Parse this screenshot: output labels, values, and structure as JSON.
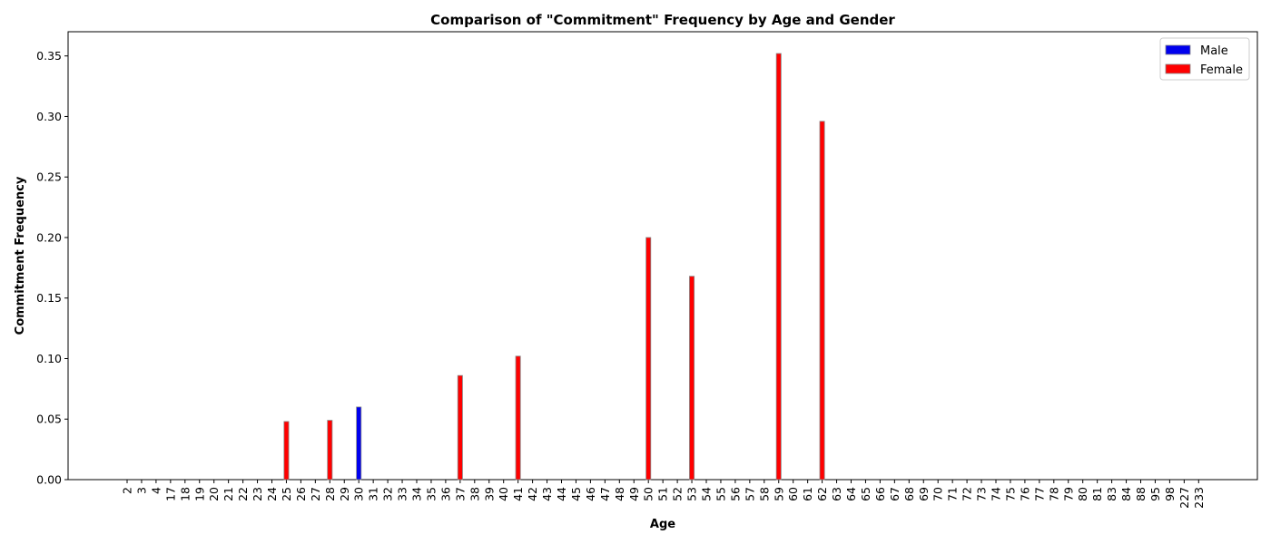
{
  "chart_data": {
    "type": "bar",
    "title": "Comparison of \"Commitment\" Frequency by Age and Gender",
    "xlabel": "Age",
    "ylabel": "Commitment Frequency",
    "ylim": [
      0,
      0.37
    ],
    "yticks": [
      0.0,
      0.05,
      0.1,
      0.15,
      0.2,
      0.25,
      0.3,
      0.35
    ],
    "ytick_labels": [
      "0.00",
      "0.05",
      "0.10",
      "0.15",
      "0.20",
      "0.25",
      "0.30",
      "0.35"
    ],
    "grid": false,
    "legend_position": "top-right",
    "categories": [
      "2",
      "3",
      "4",
      "17",
      "18",
      "19",
      "20",
      "21",
      "22",
      "23",
      "24",
      "25",
      "26",
      "27",
      "28",
      "29",
      "30",
      "31",
      "32",
      "33",
      "34",
      "35",
      "36",
      "37",
      "38",
      "39",
      "40",
      "41",
      "42",
      "43",
      "44",
      "45",
      "46",
      "47",
      "48",
      "49",
      "50",
      "51",
      "52",
      "53",
      "54",
      "55",
      "56",
      "57",
      "58",
      "59",
      "60",
      "61",
      "62",
      "63",
      "64",
      "65",
      "66",
      "67",
      "68",
      "69",
      "70",
      "71",
      "72",
      "73",
      "74",
      "75",
      "76",
      "77",
      "78",
      "79",
      "80",
      "81",
      "83",
      "84",
      "88",
      "95",
      "98",
      "227",
      "233"
    ],
    "series": [
      {
        "name": "Male",
        "color": "#0000ee",
        "values": [
          0,
          0,
          0,
          0,
          0,
          0,
          0,
          0,
          0,
          0,
          0,
          0,
          0,
          0,
          0,
          0,
          0.06,
          0,
          0,
          0,
          0,
          0,
          0,
          0,
          0,
          0,
          0,
          0,
          0,
          0,
          0,
          0,
          0,
          0,
          0,
          0,
          0,
          0,
          0,
          0,
          0,
          0,
          0,
          0,
          0,
          0,
          0,
          0,
          0,
          0,
          0,
          0,
          0,
          0,
          0,
          0,
          0,
          0,
          0,
          0,
          0,
          0,
          0,
          0,
          0,
          0,
          0,
          0,
          0,
          0,
          0,
          0,
          0,
          0,
          0
        ]
      },
      {
        "name": "Female",
        "color": "#ff0000",
        "values": [
          0,
          0,
          0,
          0,
          0,
          0,
          0,
          0,
          0,
          0,
          0,
          0.048,
          0,
          0,
          0.049,
          0,
          0,
          0,
          0,
          0,
          0,
          0,
          0,
          0.086,
          0,
          0,
          0,
          0.102,
          0,
          0,
          0,
          0,
          0,
          0,
          0,
          0,
          0.2,
          0,
          0,
          0.168,
          0,
          0,
          0,
          0,
          0,
          0.352,
          0,
          0,
          0.296,
          0,
          0,
          0,
          0,
          0,
          0,
          0,
          0,
          0,
          0,
          0,
          0,
          0,
          0,
          0,
          0,
          0,
          0,
          0,
          0,
          0,
          0,
          0,
          0,
          0,
          0
        ]
      }
    ]
  }
}
